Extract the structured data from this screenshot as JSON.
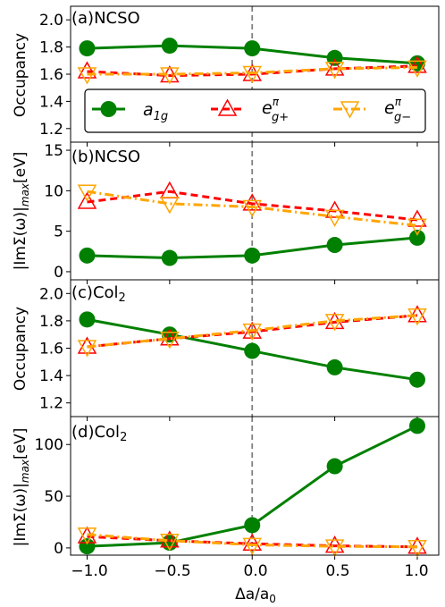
{
  "colors": {
    "a1g": "#008000",
    "eg_plus": "#ff0000",
    "eg_minus": "#ffa500",
    "vline": "#808080"
  },
  "xaxis": {
    "label_main": "Δa/a",
    "label_sub": "0",
    "ticks": [
      "−1.0",
      "−0.5",
      "0.0",
      "0.5",
      "1.0"
    ]
  },
  "legend": {
    "a1g_main": "a",
    "a1g_sub": "1g",
    "eg_plus_main": "e",
    "eg_plus_sup": "π",
    "eg_plus_sub": "g+",
    "eg_minus_main": "e",
    "eg_minus_sup": "π",
    "eg_minus_sub": "g−"
  },
  "chart_data": [
    {
      "type": "line",
      "panel_label": "(a)NCSO",
      "ylabel": "Occupancy",
      "ylim": [
        1.1,
        2.1
      ],
      "yticks": [
        "1.2",
        "1.4",
        "1.6",
        "1.8",
        "2.0"
      ],
      "ytick_values": [
        1.2,
        1.4,
        1.6,
        1.8,
        2.0
      ],
      "x": [
        -1.0,
        -0.5,
        0.0,
        0.5,
        1.0
      ],
      "legend_placement": "lower center",
      "series": [
        {
          "key": "a1g",
          "values": [
            1.79,
            1.81,
            1.79,
            1.72,
            1.68
          ]
        },
        {
          "key": "eg_plus",
          "values": [
            1.62,
            1.59,
            1.6,
            1.64,
            1.66
          ]
        },
        {
          "key": "eg_minus",
          "values": [
            1.6,
            1.6,
            1.61,
            1.64,
            1.65
          ]
        }
      ]
    },
    {
      "type": "line",
      "panel_label": "(b)NCSO",
      "ylabel_main": "|ImΣ(ω)|",
      "ylabel_sub": "max",
      "ylabel_unit": "[eV]",
      "ylim": [
        -1,
        16
      ],
      "yticks": [
        "0",
        "5",
        "10",
        "15"
      ],
      "ytick_values": [
        0,
        5,
        10,
        15
      ],
      "x": [
        -1.0,
        -0.5,
        0.0,
        0.5,
        1.0
      ],
      "series": [
        {
          "key": "a1g",
          "values": [
            2.0,
            1.7,
            2.0,
            3.3,
            4.2
          ]
        },
        {
          "key": "eg_plus",
          "values": [
            8.6,
            9.9,
            8.4,
            7.5,
            6.4
          ]
        },
        {
          "key": "eg_minus",
          "values": [
            9.9,
            8.4,
            8.0,
            6.8,
            5.7
          ]
        }
      ]
    },
    {
      "type": "line",
      "panel_label_main": "(c)Col",
      "panel_label_sub": "2",
      "ylabel": "Occupancy",
      "ylim": [
        1.1,
        2.1
      ],
      "yticks": [
        "1.2",
        "1.4",
        "1.6",
        "1.8",
        "2.0"
      ],
      "ytick_values": [
        1.2,
        1.4,
        1.6,
        1.8,
        2.0
      ],
      "x": [
        -1.0,
        -0.5,
        0.0,
        0.5,
        1.0
      ],
      "series": [
        {
          "key": "a1g",
          "values": [
            1.81,
            1.7,
            1.58,
            1.46,
            1.37
          ]
        },
        {
          "key": "eg_plus",
          "values": [
            1.61,
            1.67,
            1.72,
            1.79,
            1.84
          ]
        },
        {
          "key": "eg_minus",
          "values": [
            1.61,
            1.67,
            1.73,
            1.8,
            1.84
          ]
        }
      ]
    },
    {
      "type": "line",
      "panel_label_main": "(d)Col",
      "panel_label_sub": "2",
      "ylabel_main": "|ImΣ(ω)|",
      "ylabel_sub": "max",
      "ylabel_unit": "[eV]",
      "ylim": [
        -7,
        127
      ],
      "yticks": [
        "0",
        "50",
        "100"
      ],
      "ytick_values": [
        0,
        50,
        100
      ],
      "x": [
        -1.0,
        -0.5,
        0.0,
        0.5,
        1.0
      ],
      "series": [
        {
          "key": "a1g",
          "values": [
            1.5,
            5.0,
            22.0,
            79.0,
            118.0
          ]
        },
        {
          "key": "eg_plus",
          "values": [
            11.0,
            7.0,
            4.0,
            2.0,
            1.0
          ]
        },
        {
          "key": "eg_minus",
          "values": [
            13.0,
            7.0,
            3.0,
            1.5,
            1.0
          ]
        }
      ]
    }
  ]
}
